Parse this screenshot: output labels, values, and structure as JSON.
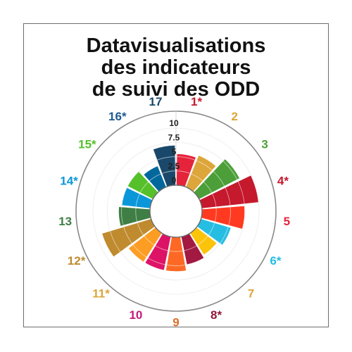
{
  "title_lines": [
    "Datavisualisations",
    "des indicateurs",
    "de suivi des ODD"
  ],
  "chart_data": {
    "type": "polar-bar",
    "title": "Datavisualisations des indicateurs de suivi des ODD",
    "categories": [
      "1*",
      "2",
      "3",
      "4*",
      "5",
      "6*",
      "7",
      "8*",
      "9",
      "10",
      "11*",
      "12*",
      "13",
      "14*",
      "15*",
      "16*",
      "17"
    ],
    "values": [
      5.5,
      6,
      8,
      10,
      7.5,
      5.5,
      4.5,
      5,
      6,
      6,
      6,
      9,
      5.5,
      5,
      5,
      4,
      7
    ],
    "colors": [
      "#e5243b",
      "#dda63a",
      "#4c9f38",
      "#c5192d",
      "#ff3a21",
      "#26bde2",
      "#fcc30b",
      "#a21942",
      "#fd6925",
      "#dd1367",
      "#fd9d24",
      "#bf8b2e",
      "#3f7e44",
      "#0a97d9",
      "#56c02b",
      "#00689d",
      "#19486a"
    ],
    "label_colors": [
      "#c5192d",
      "#dda63a",
      "#4c9f38",
      "#c5192d",
      "#e5243b",
      "#26bde2",
      "#dda63a",
      "#8f1838",
      "#dd6d2a",
      "#c51a7a",
      "#dda63a",
      "#bf8b2e",
      "#3f7e44",
      "#0a97d9",
      "#56c02b",
      "#1f5a92",
      "#19486a"
    ],
    "rticks": [
      "0",
      "2.5",
      "5",
      "7.5",
      "10"
    ],
    "rlim": [
      0,
      10
    ],
    "grid": true
  }
}
